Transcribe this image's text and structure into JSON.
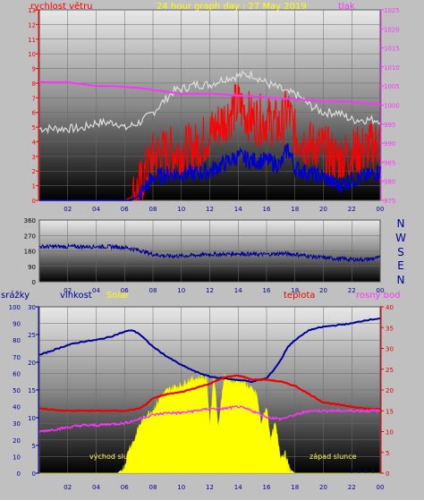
{
  "header": {
    "wind_label": "rychlost větru",
    "title": "24 hour graph day : 27 May 2019",
    "pressure_label": "tlak"
  },
  "axes_text": {
    "wind_ticks": [
      "0",
      "1",
      "2",
      "3",
      "4",
      "5",
      "6",
      "7",
      "8",
      "9",
      "10",
      "11",
      "12",
      "13"
    ],
    "pressure_ticks": [
      "975",
      "980",
      "985",
      "990",
      "995",
      "1000",
      "1005",
      "1010",
      "1015",
      "1020",
      "1025"
    ],
    "dir_ticks": [
      "360",
      "270",
      "180",
      "90",
      "0"
    ],
    "compass": [
      "N",
      "W",
      "S",
      "E",
      "N"
    ],
    "hour_ticks": [
      "02",
      "04",
      "06",
      "08",
      "10",
      "12",
      "14",
      "16",
      "18",
      "20",
      "22",
      "00"
    ],
    "pct_ticks": [
      "0",
      "10",
      "20",
      "30",
      "40",
      "50",
      "60",
      "70",
      "80",
      "90",
      "100"
    ],
    "rain_ticks": [
      "0",
      "5",
      "10",
      "15",
      "20",
      "25",
      "30"
    ],
    "temp_ticks": [
      "0",
      "5",
      "10",
      "15",
      "20",
      "25",
      "30",
      "35",
      "40"
    ]
  },
  "labels": {
    "rain": "srážky",
    "humidity": "vlhkost",
    "solar": "Solar",
    "temperature": "teplota",
    "dewpoint": "rosný bod",
    "sunrise": "východ slu",
    "sunset": "západ slunce"
  },
  "colors": {
    "wind": "#ff0000",
    "gust": "#0000cc",
    "pressure": "#ff33ff",
    "wind_bg_line": "#dddddd",
    "direction": "#000099",
    "humidity": "#000099",
    "solar": "#ffff00",
    "temperature": "#ee0000",
    "dewpoint": "#ff33ff",
    "title": "#ffff00"
  },
  "chart_data": [
    {
      "type": "line",
      "title": "24 hour graph day : 27 May 2019",
      "x_unit": "hour of day",
      "xlim": [
        0,
        24
      ],
      "ylim": [
        0,
        13
      ],
      "y2lim": [
        975,
        1025
      ],
      "series": [
        {
          "name": "rychlost větru",
          "axis": "y",
          "x": [
            0,
            6,
            6.5,
            7,
            7.5,
            8,
            9,
            10,
            11,
            12,
            13,
            14,
            15,
            16,
            17,
            17.5,
            18,
            19,
            20,
            21,
            22,
            23,
            24
          ],
          "values": [
            0,
            0,
            0.2,
            0.8,
            2,
            3,
            3.3,
            3.4,
            3.6,
            4.5,
            5.5,
            6.5,
            5.5,
            5.5,
            5,
            6.2,
            4.5,
            3.8,
            3.5,
            2.8,
            3.2,
            3.5,
            4
          ]
        },
        {
          "name": "",
          "axis": "y",
          "x": [
            0,
            6,
            6.5,
            7,
            7.5,
            8,
            9,
            10,
            11,
            12,
            13,
            14,
            15,
            16,
            17,
            17.5,
            18,
            19,
            20,
            21,
            22,
            23,
            24
          ],
          "values": [
            0,
            0,
            0,
            0.3,
            1,
            1.5,
            1.8,
            1.8,
            1.8,
            2,
            2.5,
            3,
            2.7,
            2.7,
            2.4,
            3.6,
            2.2,
            1.8,
            1.6,
            1,
            1.4,
            1.6,
            2
          ]
        },
        {
          "name": "",
          "axis": "y",
          "x": [
            0,
            1,
            2,
            3,
            4,
            5,
            5.5,
            6,
            7,
            7.5,
            8,
            9,
            9.5,
            10,
            11,
            12,
            13,
            14,
            15,
            16,
            17,
            17.5,
            18,
            18.5,
            19,
            20,
            21,
            22,
            23,
            24
          ],
          "values": [
            4.9,
            4.9,
            4.9,
            4.9,
            5.3,
            5.3,
            5.3,
            4.9,
            5.3,
            5.6,
            6,
            7,
            7.5,
            7.6,
            7.9,
            7.9,
            8.3,
            8.5,
            8.6,
            8,
            7.6,
            7.3,
            7.3,
            6.9,
            6.5,
            6,
            6,
            5.5,
            5.5,
            5.5
          ]
        },
        {
          "name": "tlak",
          "axis": "y2",
          "x": [
            0,
            1,
            2,
            3,
            4,
            5,
            6,
            7,
            8,
            9,
            10,
            11,
            12,
            13,
            14,
            15,
            16,
            17,
            18,
            19,
            20,
            21,
            22,
            23,
            24
          ],
          "values": [
            1006,
            1006,
            1006,
            1005.5,
            1005,
            1005,
            1004.8,
            1004.5,
            1004,
            1003.5,
            1003,
            1003,
            1003,
            1002.8,
            1002.5,
            1002.3,
            1002,
            1001.8,
            1001.5,
            1001.3,
            1001,
            1001,
            1000.8,
            1000.5,
            1000.2
          ]
        }
      ]
    },
    {
      "type": "line",
      "title": "",
      "x_unit": "hour of day",
      "xlim": [
        0,
        24
      ],
      "ylim": [
        0,
        360
      ],
      "series": [
        {
          "name": "",
          "x": [
            0,
            1,
            2,
            3,
            4,
            5,
            6,
            7,
            8,
            9,
            10,
            11,
            12,
            13,
            14,
            15,
            16,
            17,
            18,
            19,
            20,
            21,
            22,
            23,
            24
          ],
          "values": [
            205,
            205,
            205,
            205,
            205,
            205,
            200,
            185,
            160,
            150,
            150,
            155,
            160,
            160,
            165,
            160,
            160,
            165,
            160,
            150,
            140,
            135,
            130,
            130,
            140
          ]
        }
      ]
    },
    {
      "type": "line",
      "title": "",
      "x_unit": "hour of day",
      "xlim": [
        0,
        24
      ],
      "ylim": [
        0,
        100
      ],
      "y2lim": [
        0,
        40
      ],
      "y3lim": [
        0,
        30
      ],
      "series": [
        {
          "name": "vlhkost",
          "axis": "y",
          "x": [
            0,
            1,
            2,
            3,
            4,
            5,
            6,
            6.5,
            7,
            8,
            9,
            10,
            11,
            12,
            13,
            14,
            15,
            16,
            16.5,
            17,
            17.5,
            18,
            19,
            20,
            21,
            22,
            23,
            24
          ],
          "values": [
            71,
            74,
            77,
            79,
            80,
            82,
            85,
            86,
            84,
            76,
            70,
            65,
            61,
            58,
            57,
            56,
            55,
            57,
            62,
            68,
            76,
            80,
            86,
            88,
            89,
            90,
            92,
            93
          ]
        },
        {
          "name": "teplota",
          "axis": "y2",
          "x": [
            0,
            1,
            2,
            3,
            4,
            5,
            6,
            7,
            7.5,
            8,
            9,
            10,
            11,
            12,
            13,
            14,
            15,
            16,
            17,
            18,
            19,
            20,
            21,
            22,
            23,
            24
          ],
          "values": [
            15.5,
            15.2,
            15,
            15,
            15,
            15,
            15,
            15.5,
            16.5,
            18,
            19,
            19.5,
            20.5,
            21.5,
            23,
            23.5,
            22.5,
            22.5,
            22,
            21,
            19,
            17,
            16.5,
            16,
            15.5,
            15.3
          ]
        },
        {
          "name": "rosný bod",
          "axis": "y2",
          "x": [
            0,
            1,
            2,
            3,
            4,
            5,
            6,
            7,
            8,
            9,
            10,
            11,
            12,
            13,
            14,
            15,
            16,
            17,
            18,
            19,
            20,
            21,
            22,
            23,
            24
          ],
          "values": [
            10,
            10.5,
            11,
            11.5,
            11.5,
            11.8,
            12,
            13,
            14,
            14.5,
            14.5,
            15,
            15.5,
            15.5,
            16,
            15,
            13.5,
            13,
            14,
            15,
            15,
            15,
            15,
            15,
            15
          ]
        },
        {
          "name": "Solar",
          "axis": "y",
          "x": [
            0,
            5.5,
            6,
            6.3,
            6.7,
            7,
            7.5,
            8,
            8.5,
            9,
            9.5,
            10,
            10.5,
            11,
            11.5,
            11.8,
            12,
            12.3,
            12.6,
            13,
            13.3,
            13.7,
            14,
            14.5,
            15,
            15.3,
            15.6,
            16,
            16.3,
            16.6,
            17,
            17.3,
            17.6,
            18,
            24
          ],
          "values": [
            0,
            0,
            4,
            15,
            20,
            28,
            35,
            38,
            45,
            50,
            52,
            53,
            56,
            57,
            58,
            56,
            30,
            60,
            28,
            58,
            57,
            55,
            56,
            54,
            50,
            48,
            30,
            40,
            20,
            30,
            10,
            12,
            3,
            0,
            0
          ]
        }
      ]
    }
  ]
}
